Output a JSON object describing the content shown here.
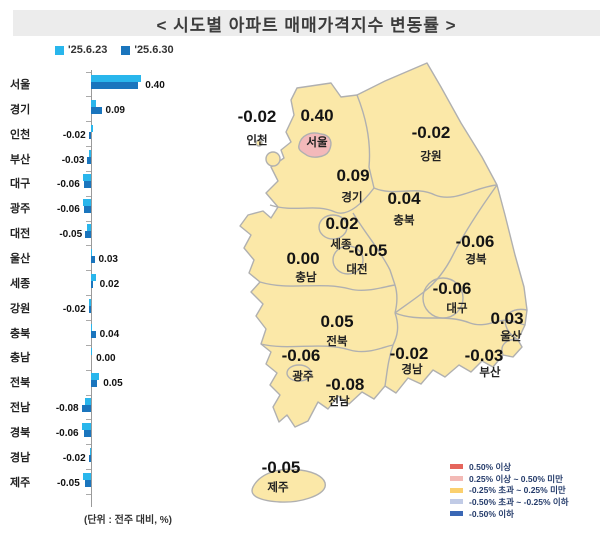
{
  "title": "< 시도별 아파트 매매가격지수 변동률 >",
  "unit_note": "(단위 : 전주 대비, %)",
  "series_legend": [
    {
      "label": "'25.6.23",
      "color": "#29b6ec"
    },
    {
      "label": "'25.6.30",
      "color": "#1a75bd"
    }
  ],
  "chart_data": {
    "type": "bar",
    "orientation": "horizontal",
    "unit": "전주 대비, %",
    "categories": [
      "서울",
      "경기",
      "인천",
      "부산",
      "대구",
      "광주",
      "대전",
      "울산",
      "세종",
      "강원",
      "충북",
      "충남",
      "전북",
      "전남",
      "경북",
      "경남",
      "제주"
    ],
    "series": [
      {
        "name": "'25.6.23",
        "color": "#29b6ec",
        "values": [
          0.43,
          0.04,
          0.02,
          -0.02,
          -0.07,
          -0.07,
          -0.03,
          0.01,
          0.04,
          -0.02,
          0.01,
          0.01,
          0.07,
          -0.05,
          -0.08,
          -0.01,
          -0.07
        ]
      },
      {
        "name": "'25.6.30",
        "color": "#1a75bd",
        "values": [
          0.4,
          0.09,
          -0.02,
          -0.03,
          -0.06,
          -0.06,
          -0.05,
          0.03,
          0.02,
          -0.02,
          0.04,
          0.0,
          0.05,
          -0.08,
          -0.06,
          -0.02,
          -0.05
        ]
      }
    ],
    "value_labels": [
      "0.40",
      "0.09",
      "-0.02",
      "-0.03",
      "-0.06",
      "-0.06",
      "-0.05",
      "0.03",
      "0.02",
      "-0.02",
      "0.04",
      "0.00",
      "0.05",
      "-0.08",
      "-0.06",
      "-0.02",
      "-0.05"
    ],
    "xlim": [
      -0.15,
      0.5
    ],
    "grid": false,
    "legend_position": "top-left"
  },
  "map": {
    "regions": [
      {
        "name": "인천",
        "value": "-0.02"
      },
      {
        "name": "서울",
        "value": "0.40"
      },
      {
        "name": "경기",
        "value": "0.09"
      },
      {
        "name": "강원",
        "value": "-0.02"
      },
      {
        "name": "충북",
        "value": "0.04"
      },
      {
        "name": "세종",
        "value": "0.02"
      },
      {
        "name": "대전",
        "value": "-0.05"
      },
      {
        "name": "충남",
        "value": "0.00"
      },
      {
        "name": "경북",
        "value": "-0.06"
      },
      {
        "name": "대구",
        "value": "-0.06"
      },
      {
        "name": "울산",
        "value": "0.03"
      },
      {
        "name": "전북",
        "value": "0.05"
      },
      {
        "name": "광주",
        "value": "-0.06"
      },
      {
        "name": "전남",
        "value": "-0.08"
      },
      {
        "name": "경남",
        "value": "-0.02"
      },
      {
        "name": "부산",
        "value": "-0.03"
      },
      {
        "name": "제주",
        "value": "-0.05"
      }
    ],
    "colors": {
      "land": "#fbe8a8",
      "seoul_fill": "#f3b9ba",
      "border": "#b0b0b0"
    }
  },
  "map_legend": [
    {
      "label": "0.50% 이상",
      "color": "#e5655c"
    },
    {
      "label": "0.25% 이상 ~ 0.50% 미만",
      "color": "#f3bab6"
    },
    {
      "label": "-0.25% 초과 ~ 0.25% 미만",
      "color": "#fbd06e"
    },
    {
      "label": "-0.50% 초과 ~ -0.25% 이하",
      "color": "#c1cbe6"
    },
    {
      "label": "-0.50% 이하",
      "color": "#3a67b5"
    }
  ]
}
